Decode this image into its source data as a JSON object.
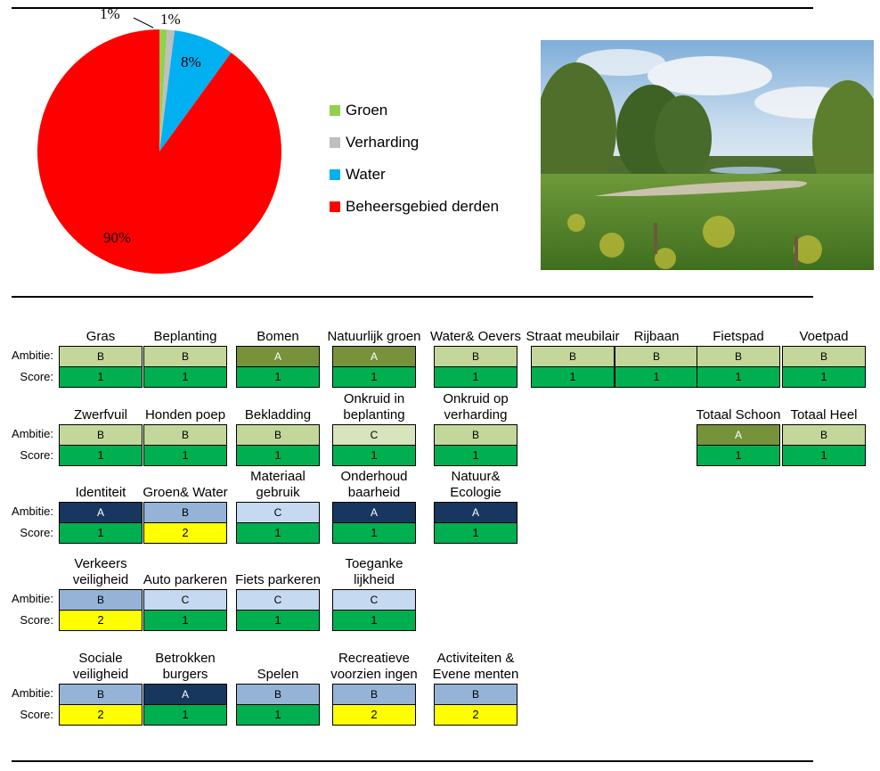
{
  "chart_data": {
    "type": "pie",
    "slices": [
      {
        "name": "Groen",
        "value": 1,
        "label": "1%",
        "color": "#92D050"
      },
      {
        "name": "Verharding",
        "value": 1,
        "label": "1%",
        "color": "#BFBFBF"
      },
      {
        "name": "Water",
        "value": 8,
        "label": "8%",
        "color": "#00B0F0"
      },
      {
        "name": "Beheersgebied derden",
        "value": 90,
        "label": "90%",
        "color": "#FF0000"
      }
    ],
    "legend_position": "right"
  },
  "row_labels": {
    "ambitie": "Ambitie:",
    "score": "Score:"
  },
  "categories": [
    {
      "title": "Gras",
      "ambitie": "B",
      "score": "1"
    },
    {
      "title": "Beplanting",
      "ambitie": "B",
      "score": "1"
    },
    {
      "title": "Bomen",
      "ambitie": "A",
      "score": "1"
    },
    {
      "title": "Natuurlijk groen",
      "ambitie": "A",
      "score": "1"
    },
    {
      "title": "Water& Oevers",
      "ambitie": "B",
      "score": "1"
    },
    {
      "title": "Straat meubilair",
      "ambitie": "B",
      "score": "1"
    },
    {
      "title": "Rijbaan",
      "ambitie": "B",
      "score": "1"
    },
    {
      "title": "Fietspad",
      "ambitie": "B",
      "score": "1"
    },
    {
      "title": "Voetpad",
      "ambitie": "B",
      "score": "1"
    },
    {
      "title": "Zwerfvuil",
      "ambitie": "B",
      "score": "1"
    },
    {
      "title": "Honden poep",
      "ambitie": "B",
      "score": "1"
    },
    {
      "title": "Bekladding",
      "ambitie": "B",
      "score": "1"
    },
    {
      "title": "Onkruid in beplanting",
      "ambitie": "C",
      "score": "1"
    },
    {
      "title": "Onkruid op verharding",
      "ambitie": "B",
      "score": "1"
    },
    {
      "title": "Totaal Schoon",
      "ambitie": "A",
      "score": "1"
    },
    {
      "title": "Totaal Heel",
      "ambitie": "B",
      "score": "1"
    },
    {
      "title": "Identiteit",
      "ambitie": "A",
      "score": "1"
    },
    {
      "title": "Groen& Water",
      "ambitie": "B",
      "score": "2"
    },
    {
      "title": "Materiaal gebruik",
      "ambitie": "C",
      "score": "1"
    },
    {
      "title": "Onderhoud baarheid",
      "ambitie": "A",
      "score": "1"
    },
    {
      "title": "Natuur& Ecologie",
      "ambitie": "A",
      "score": "1"
    },
    {
      "title": "Verkeers veiligheid",
      "ambitie": "B",
      "score": "2"
    },
    {
      "title": "Auto parkeren",
      "ambitie": "C",
      "score": "1"
    },
    {
      "title": "Fiets parkeren",
      "ambitie": "C",
      "score": "1"
    },
    {
      "title": "Toeganke lijkheid",
      "ambitie": "C",
      "score": "1"
    },
    {
      "title": "Sociale veiligheid",
      "ambitie": "B",
      "score": "2"
    },
    {
      "title": "Betrokken burgers",
      "ambitie": "A",
      "score": "1"
    },
    {
      "title": "Spelen",
      "ambitie": "B",
      "score": "1"
    },
    {
      "title": "Recreatieve voorzien ingen",
      "ambitie": "B",
      "score": "2"
    },
    {
      "title": "Activiteiten & Evene menten",
      "ambitie": "B",
      "score": "2"
    }
  ],
  "colors": {
    "green_light_B": "#C4D79B",
    "green_dark_A": "#76933C",
    "green_pale_C": "#D8E4BC",
    "blue_B": "#95B3D7",
    "blue_C": "#C5D9F1",
    "navy_A": "#17375E",
    "score_green": "#00B050",
    "score_yellow": "#FFFF00"
  }
}
